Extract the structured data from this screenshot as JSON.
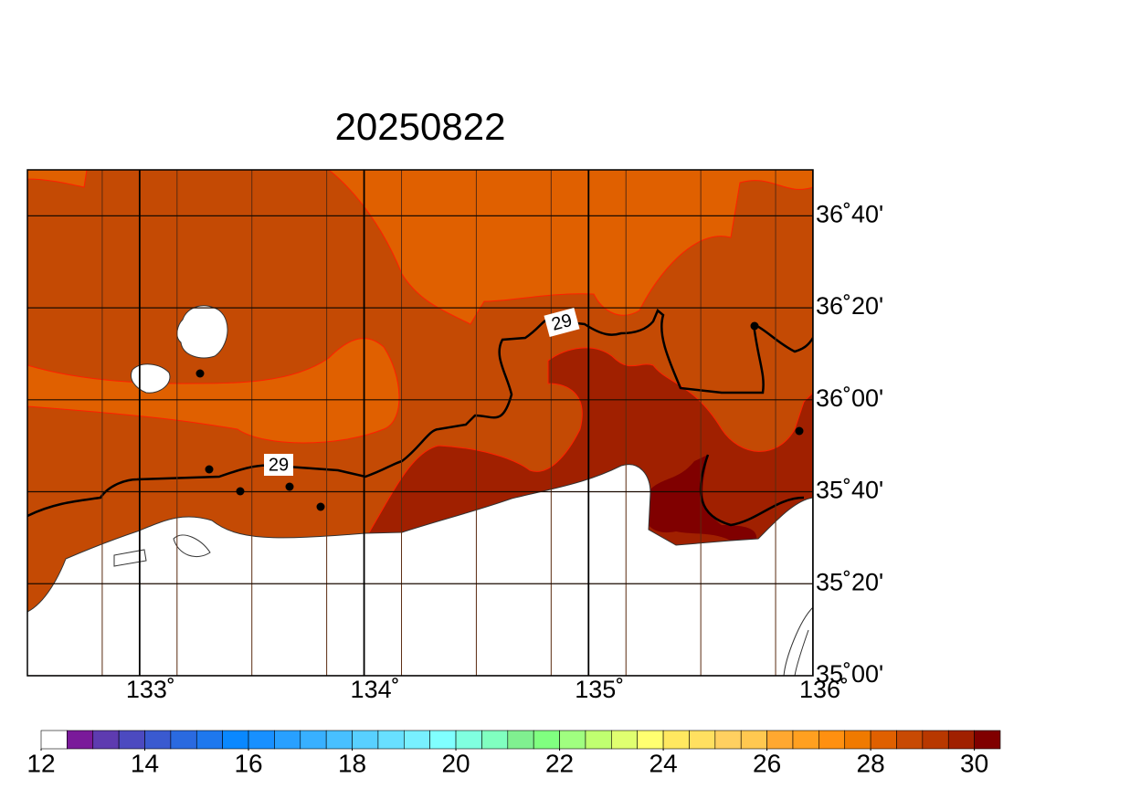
{
  "title": "20250822",
  "map": {
    "lon_range": [
      132.5,
      136
    ],
    "lat_range": [
      35,
      36.8333
    ],
    "lon_ticks": [
      {
        "value": 133,
        "label": "133˚"
      },
      {
        "value": 134,
        "label": "134˚"
      },
      {
        "value": 135,
        "label": "135˚"
      },
      {
        "value": 136,
        "label": "136˚"
      }
    ],
    "lat_ticks": [
      {
        "value": 36.6667,
        "label": "36˚40'"
      },
      {
        "value": 36.3333,
        "label": "36˚20'"
      },
      {
        "value": 36,
        "label": "36˚00'"
      },
      {
        "value": 35.6667,
        "label": "35˚40'"
      },
      {
        "value": 35.3333,
        "label": "35˚20'"
      },
      {
        "value": 35,
        "label": "35˚00'"
      }
    ],
    "contour_labels": [
      "29",
      "29"
    ]
  },
  "colorbar": {
    "lim": [
      12,
      30.5
    ],
    "ticks": [
      12,
      14,
      16,
      18,
      20,
      22,
      24,
      26,
      28,
      30
    ],
    "colors": [
      "#ffffff",
      "#7a1a9a",
      "#5e3bb0",
      "#4c4ac0",
      "#3a5ad0",
      "#2a6ae0",
      "#1e78ee",
      "#0a88ff",
      "#1890ff",
      "#28a0ff",
      "#38b0ff",
      "#48c0ff",
      "#58d0ff",
      "#68e0ff",
      "#78f0ff",
      "#80ffff",
      "#80ffe0",
      "#80ffc0",
      "#80f090",
      "#80ff80",
      "#a0ff80",
      "#c0ff70",
      "#e0ff70",
      "#ffff70",
      "#ffe860",
      "#ffe060",
      "#ffd060",
      "#ffc850",
      "#ffa830",
      "#ffa020",
      "#ff9010",
      "#f07a00",
      "#e06000",
      "#c84a04",
      "#b83800",
      "#a02000",
      "#800000"
    ]
  }
}
